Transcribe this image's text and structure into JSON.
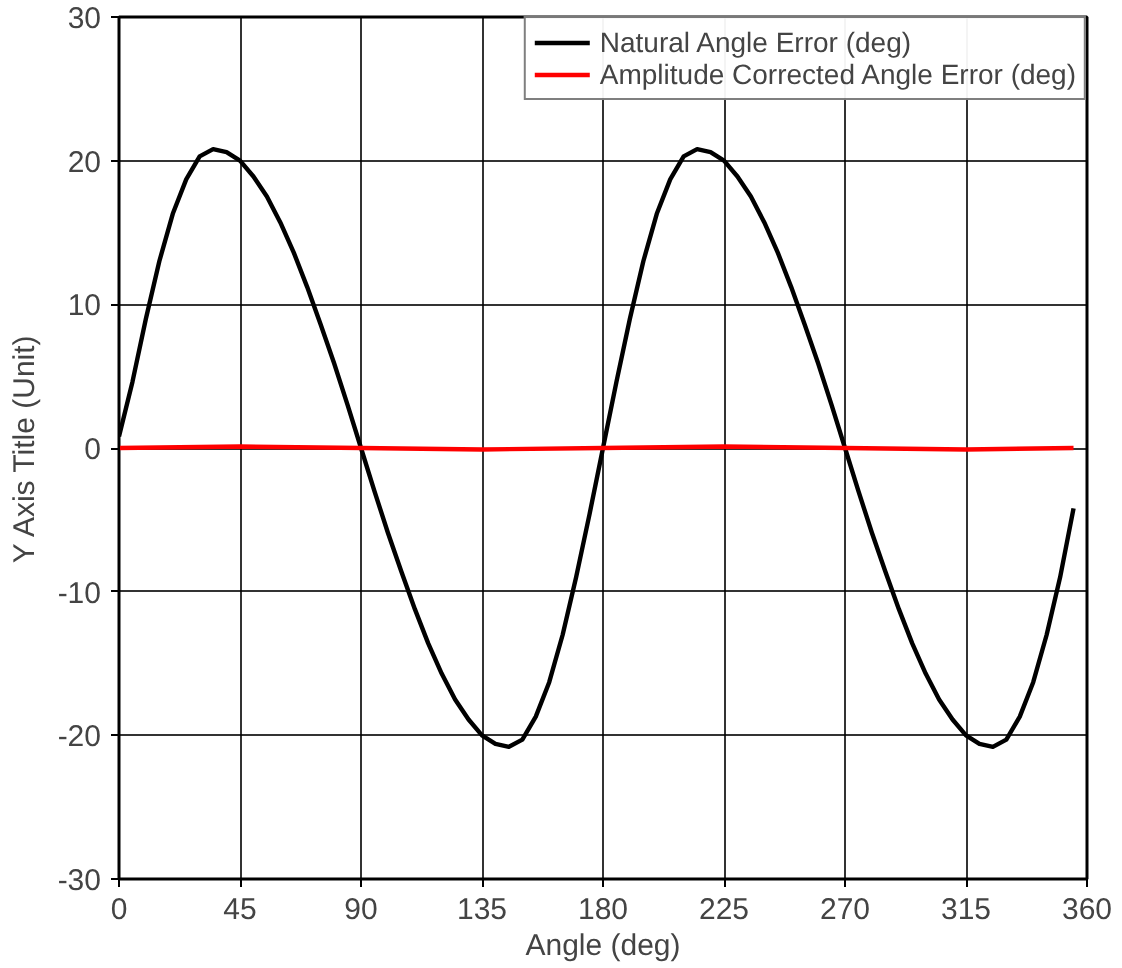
{
  "chart_data": {
    "type": "line",
    "xlabel": "Angle (deg)",
    "ylabel": "Y Axis Title (Unit)",
    "xlim": [
      0,
      360
    ],
    "ylim": [
      -30,
      30
    ],
    "xticks": [
      0,
      45,
      90,
      135,
      180,
      225,
      270,
      315,
      360
    ],
    "yticks": [
      -30,
      -20,
      -10,
      0,
      10,
      20,
      30
    ],
    "grid": true,
    "legend": "top right",
    "marker": "none",
    "line_style": "solid",
    "series": [
      {
        "name": "Natural Angle Error (deg)",
        "color": "#000000",
        "x": [
          0,
          5,
          10,
          15,
          20,
          25,
          30,
          35,
          40,
          45,
          50,
          55,
          60,
          65,
          70,
          75,
          80,
          85,
          90,
          95,
          100,
          105,
          110,
          115,
          120,
          125,
          130,
          135,
          140,
          145,
          150,
          155,
          160,
          165,
          170,
          175,
          180,
          185,
          190,
          195,
          200,
          205,
          210,
          215,
          220,
          225,
          230,
          235,
          240,
          245,
          250,
          255,
          260,
          265,
          270,
          275,
          280,
          285,
          290,
          295,
          300,
          305,
          310,
          315,
          320,
          325,
          330,
          335,
          340,
          345,
          350,
          355
        ],
        "values": [
          0.8,
          4.6,
          9.0,
          13.0,
          16.3,
          18.7,
          20.3,
          20.8,
          20.6,
          20.0,
          18.9,
          17.5,
          15.7,
          13.6,
          11.2,
          8.6,
          5.9,
          3.0,
          0,
          -3.0,
          -5.9,
          -8.6,
          -11.2,
          -13.6,
          -15.7,
          -17.5,
          -18.9,
          -20.0,
          -20.6,
          -20.8,
          -20.3,
          -18.7,
          -16.3,
          -13.0,
          -9.0,
          -4.6,
          0,
          4.6,
          9.0,
          13.0,
          16.3,
          18.7,
          20.3,
          20.8,
          20.6,
          20.0,
          18.9,
          17.5,
          15.7,
          13.6,
          11.2,
          8.6,
          5.9,
          3.0,
          0,
          -3.0,
          -5.9,
          -8.6,
          -11.2,
          -13.6,
          -15.7,
          -17.5,
          -18.9,
          -20.0,
          -20.6,
          -20.8,
          -20.3,
          -18.7,
          -16.3,
          -13.0,
          -9.0,
          -4.2
        ]
      },
      {
        "name": "Amplitude Corrected Angle Error (deg)",
        "color": "#ff0000",
        "x": [
          0,
          45,
          90,
          135,
          180,
          225,
          270,
          315,
          355
        ],
        "values": [
          0,
          0.1,
          0,
          -0.1,
          0,
          0.1,
          0,
          -0.1,
          0
        ]
      }
    ]
  }
}
